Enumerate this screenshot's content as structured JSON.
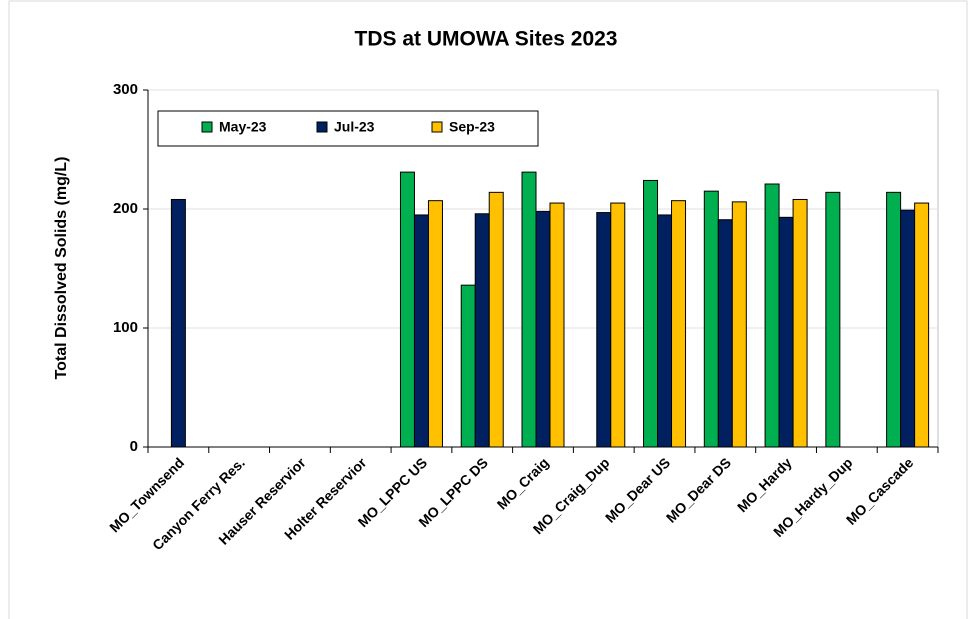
{
  "chart_data": {
    "type": "bar",
    "title": "TDS at UMOWA Sites 2023",
    "y_label": "Total Dissolved Solids (mg/L)",
    "categories": [
      "MO_Townsend",
      "Canyon Ferry  Res.",
      "Hauser Reservior",
      "Holter Reservior",
      "MO_LPPC US",
      "MO_LPPC DS",
      "MO_Craig",
      "MO_Craig_Dup",
      "MO_Dear US",
      "MO_Dear DS",
      "MO_Hardy",
      "MO_Hardy_Dup",
      "MO_Cascade"
    ],
    "series": [
      {
        "name": "May-23",
        "color": "#00b050",
        "values": [
          null,
          null,
          null,
          null,
          231,
          136,
          231,
          null,
          224,
          215,
          221,
          214,
          214
        ]
      },
      {
        "name": "Jul-23",
        "color": "#002060",
        "values": [
          208,
          null,
          null,
          null,
          195,
          196,
          198,
          197,
          195,
          191,
          193,
          null,
          199
        ]
      },
      {
        "name": "Sep-23",
        "color": "#ffc000",
        "values": [
          null,
          null,
          null,
          null,
          207,
          214,
          205,
          205,
          207,
          206,
          208,
          null,
          205
        ]
      }
    ],
    "ylim": [
      0,
      300
    ],
    "yticks": [
      0,
      100,
      200,
      300
    ],
    "grid": true,
    "legend": "top-left"
  }
}
